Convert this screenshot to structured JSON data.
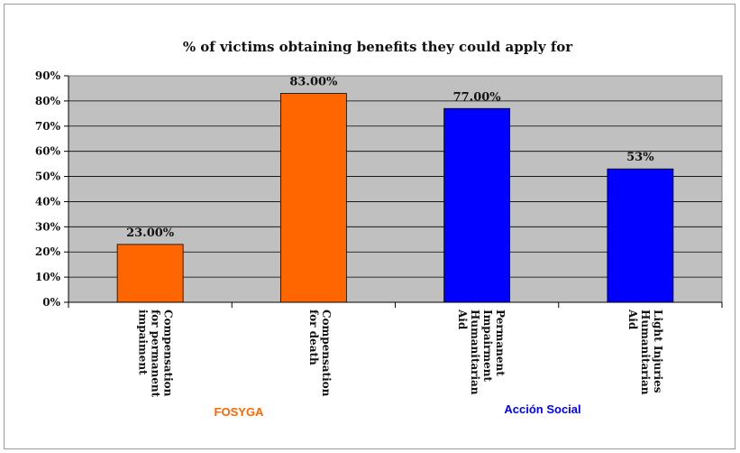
{
  "chart_data": {
    "type": "bar",
    "title": "% of victims obtaining benefits they could apply for",
    "categories": [
      [
        "Compensation",
        "for permanent",
        "impaiment"
      ],
      [
        "Compensation",
        "for death"
      ],
      [
        "Permanent",
        "Impairment",
        "Humanitarian",
        "Aid"
      ],
      [
        "Light Injuries",
        "Humanitarian",
        "Aid"
      ]
    ],
    "values": [
      23,
      83,
      77,
      53
    ],
    "data_labels": [
      "23.00%",
      "83.00%",
      "77.00%",
      "53%"
    ],
    "bar_colors": [
      "#ff6600",
      "#ff6600",
      "#0000ff",
      "#0000ff"
    ],
    "ylim": [
      0,
      90
    ],
    "yticks": [
      "0%",
      "10%",
      "20%",
      "30%",
      "40%",
      "50%",
      "60%",
      "70%",
      "80%",
      "90%"
    ],
    "grid": true,
    "plot_background": "#c0c0c0",
    "groups": [
      {
        "label": "FOSYGA",
        "color": "#ff6600"
      },
      {
        "label": "Acción Social",
        "color": "#0000ff"
      }
    ]
  }
}
